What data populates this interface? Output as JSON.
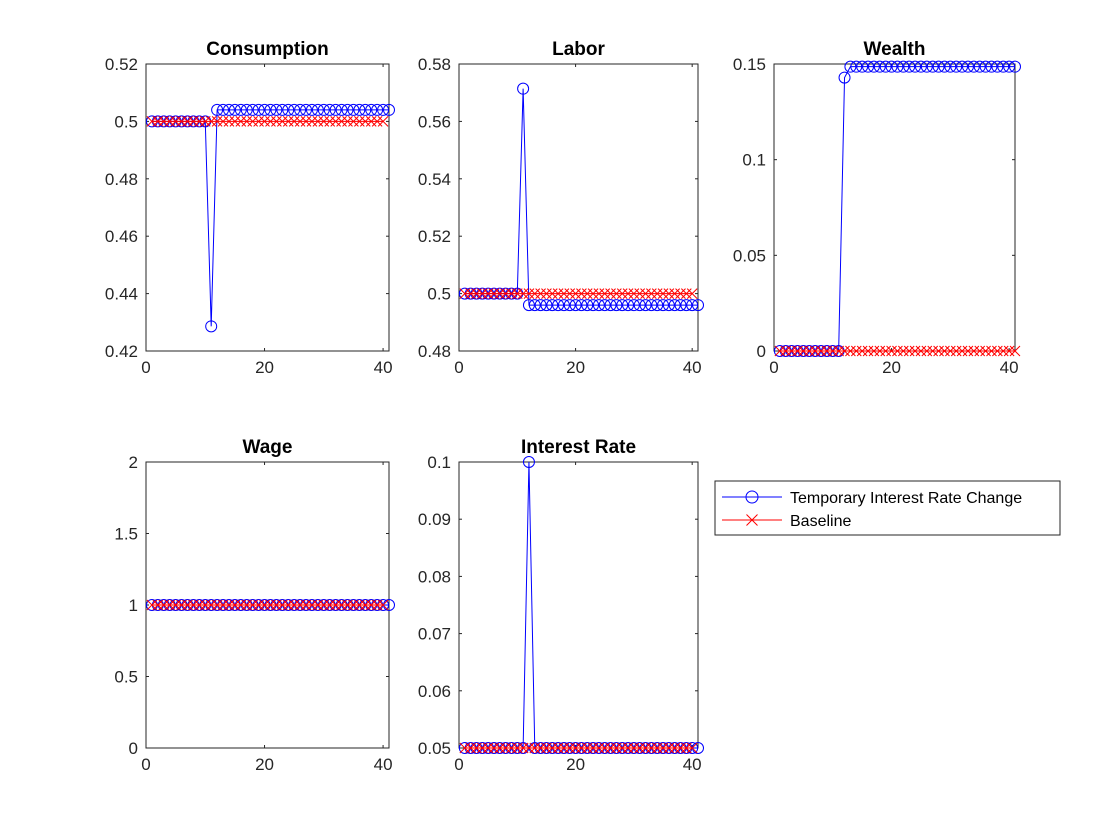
{
  "colors": {
    "series1": "#0000ff",
    "series2": "#ff0000",
    "axis": "#262626"
  },
  "legend": {
    "placement": "right of bottom row, outside plots",
    "entries": [
      {
        "label": "Temporary Interest Rate Change",
        "marker": "circle",
        "color": "#0000ff"
      },
      {
        "label": "Baseline",
        "marker": "x",
        "color": "#ff0000"
      }
    ]
  },
  "chart_data": [
    {
      "type": "line",
      "title": "Consumption",
      "xlim": [
        0,
        41
      ],
      "ylim": [
        0.42,
        0.52
      ],
      "xticks": [
        "0",
        "20",
        "40"
      ],
      "yticks": [
        "0.42",
        "0.44",
        "0.46",
        "0.48",
        "0.5",
        "0.52"
      ],
      "ytick_values": [
        0.42,
        0.44,
        0.46,
        0.48,
        0.5,
        0.52
      ],
      "series": [
        {
          "name": "Temporary Interest Rate Change",
          "marker": "circle",
          "color": "#0000ff",
          "x": [
            1,
            2,
            3,
            4,
            5,
            6,
            7,
            8,
            9,
            10,
            11,
            12,
            13,
            14,
            15,
            16,
            17,
            18,
            19,
            20,
            21,
            22,
            23,
            24,
            25,
            26,
            27,
            28,
            29,
            30,
            31,
            32,
            33,
            34,
            35,
            36,
            37,
            38,
            39,
            40,
            41
          ],
          "values": [
            0.5,
            0.5,
            0.5,
            0.5,
            0.5,
            0.5,
            0.5,
            0.5,
            0.5,
            0.5,
            0.4286,
            0.504,
            0.504,
            0.504,
            0.504,
            0.504,
            0.504,
            0.504,
            0.504,
            0.504,
            0.504,
            0.504,
            0.504,
            0.504,
            0.504,
            0.504,
            0.504,
            0.504,
            0.504,
            0.504,
            0.504,
            0.504,
            0.504,
            0.504,
            0.504,
            0.504,
            0.504,
            0.504,
            0.504,
            0.504,
            0.504
          ]
        },
        {
          "name": "Baseline",
          "marker": "x",
          "color": "#ff0000",
          "x": [
            1,
            2,
            3,
            4,
            5,
            6,
            7,
            8,
            9,
            10,
            11,
            12,
            13,
            14,
            15,
            16,
            17,
            18,
            19,
            20,
            21,
            22,
            23,
            24,
            25,
            26,
            27,
            28,
            29,
            30,
            31,
            32,
            33,
            34,
            35,
            36,
            37,
            38,
            39,
            40
          ],
          "values": [
            0.5,
            0.5,
            0.5,
            0.5,
            0.5,
            0.5,
            0.5,
            0.5,
            0.5,
            0.5,
            0.5,
            0.5,
            0.5,
            0.5,
            0.5,
            0.5,
            0.5,
            0.5,
            0.5,
            0.5,
            0.5,
            0.5,
            0.5,
            0.5,
            0.5,
            0.5,
            0.5,
            0.5,
            0.5,
            0.5,
            0.5,
            0.5,
            0.5,
            0.5,
            0.5,
            0.5,
            0.5,
            0.5,
            0.5,
            0.5
          ]
        }
      ]
    },
    {
      "type": "line",
      "title": "Labor",
      "xlim": [
        0,
        41
      ],
      "ylim": [
        0.48,
        0.58
      ],
      "xticks": [
        "0",
        "20",
        "40"
      ],
      "yticks": [
        "0.48",
        "0.5",
        "0.52",
        "0.54",
        "0.56",
        "0.58"
      ],
      "ytick_values": [
        0.48,
        0.5,
        0.52,
        0.54,
        0.56,
        0.58
      ],
      "series": [
        {
          "name": "Temporary Interest Rate Change",
          "marker": "circle",
          "color": "#0000ff",
          "x": [
            1,
            2,
            3,
            4,
            5,
            6,
            7,
            8,
            9,
            10,
            11,
            12,
            13,
            14,
            15,
            16,
            17,
            18,
            19,
            20,
            21,
            22,
            23,
            24,
            25,
            26,
            27,
            28,
            29,
            30,
            31,
            32,
            33,
            34,
            35,
            36,
            37,
            38,
            39,
            40,
            41
          ],
          "values": [
            0.5,
            0.5,
            0.5,
            0.5,
            0.5,
            0.5,
            0.5,
            0.5,
            0.5,
            0.5,
            0.5714,
            0.496,
            0.496,
            0.496,
            0.496,
            0.496,
            0.496,
            0.496,
            0.496,
            0.496,
            0.496,
            0.496,
            0.496,
            0.496,
            0.496,
            0.496,
            0.496,
            0.496,
            0.496,
            0.496,
            0.496,
            0.496,
            0.496,
            0.496,
            0.496,
            0.496,
            0.496,
            0.496,
            0.496,
            0.496,
            0.496
          ]
        },
        {
          "name": "Baseline",
          "marker": "x",
          "color": "#ff0000",
          "x": [
            1,
            2,
            3,
            4,
            5,
            6,
            7,
            8,
            9,
            10,
            11,
            12,
            13,
            14,
            15,
            16,
            17,
            18,
            19,
            20,
            21,
            22,
            23,
            24,
            25,
            26,
            27,
            28,
            29,
            30,
            31,
            32,
            33,
            34,
            35,
            36,
            37,
            38,
            39,
            40
          ],
          "values": [
            0.5,
            0.5,
            0.5,
            0.5,
            0.5,
            0.5,
            0.5,
            0.5,
            0.5,
            0.5,
            0.5,
            0.5,
            0.5,
            0.5,
            0.5,
            0.5,
            0.5,
            0.5,
            0.5,
            0.5,
            0.5,
            0.5,
            0.5,
            0.5,
            0.5,
            0.5,
            0.5,
            0.5,
            0.5,
            0.5,
            0.5,
            0.5,
            0.5,
            0.5,
            0.5,
            0.5,
            0.5,
            0.5,
            0.5,
            0.5
          ]
        }
      ]
    },
    {
      "type": "line",
      "title": "Wealth",
      "xlim": [
        0,
        41
      ],
      "ylim": [
        0,
        0.15
      ],
      "xticks": [
        "0",
        "20",
        "40"
      ],
      "yticks": [
        "0",
        "0.05",
        "0.1",
        "0.15"
      ],
      "ytick_values": [
        0,
        0.05,
        0.1,
        0.15
      ],
      "series": [
        {
          "name": "Temporary Interest Rate Change",
          "marker": "circle",
          "color": "#0000ff",
          "x": [
            1,
            2,
            3,
            4,
            5,
            6,
            7,
            8,
            9,
            10,
            11,
            12,
            13,
            14,
            15,
            16,
            17,
            18,
            19,
            20,
            21,
            22,
            23,
            24,
            25,
            26,
            27,
            28,
            29,
            30,
            31,
            32,
            33,
            34,
            35,
            36,
            37,
            38,
            39,
            40,
            41
          ],
          "values": [
            0,
            0,
            0,
            0,
            0,
            0,
            0,
            0,
            0,
            0,
            0,
            0.1429,
            0.1486,
            0.1486,
            0.1486,
            0.1486,
            0.1486,
            0.1486,
            0.1486,
            0.1486,
            0.1486,
            0.1486,
            0.1486,
            0.1486,
            0.1486,
            0.1486,
            0.1486,
            0.1486,
            0.1486,
            0.1486,
            0.1486,
            0.1486,
            0.1486,
            0.1486,
            0.1486,
            0.1486,
            0.1486,
            0.1486,
            0.1486,
            0.1486,
            0.1486
          ]
        },
        {
          "name": "Baseline",
          "marker": "x",
          "color": "#ff0000",
          "x": [
            1,
            2,
            3,
            4,
            5,
            6,
            7,
            8,
            9,
            10,
            11,
            12,
            13,
            14,
            15,
            16,
            17,
            18,
            19,
            20,
            21,
            22,
            23,
            24,
            25,
            26,
            27,
            28,
            29,
            30,
            31,
            32,
            33,
            34,
            35,
            36,
            37,
            38,
            39,
            40,
            41
          ],
          "values": [
            0,
            0,
            0,
            0,
            0,
            0,
            0,
            0,
            0,
            0,
            0,
            0,
            0,
            0,
            0,
            0,
            0,
            0,
            0,
            0,
            0,
            0,
            0,
            0,
            0,
            0,
            0,
            0,
            0,
            0,
            0,
            0,
            0,
            0,
            0,
            0,
            0,
            0,
            0,
            0,
            0
          ]
        }
      ]
    },
    {
      "type": "line",
      "title": "Wage",
      "xlim": [
        0,
        41
      ],
      "ylim": [
        0,
        2
      ],
      "xticks": [
        "0",
        "20",
        "40"
      ],
      "yticks": [
        "0",
        "0.5",
        "1",
        "1.5",
        "2"
      ],
      "ytick_values": [
        0,
        0.5,
        1,
        1.5,
        2
      ],
      "series": [
        {
          "name": "Temporary Interest Rate Change",
          "marker": "circle",
          "color": "#0000ff",
          "x": [
            1,
            2,
            3,
            4,
            5,
            6,
            7,
            8,
            9,
            10,
            11,
            12,
            13,
            14,
            15,
            16,
            17,
            18,
            19,
            20,
            21,
            22,
            23,
            24,
            25,
            26,
            27,
            28,
            29,
            30,
            31,
            32,
            33,
            34,
            35,
            36,
            37,
            38,
            39,
            40,
            41
          ],
          "values": [
            1,
            1,
            1,
            1,
            1,
            1,
            1,
            1,
            1,
            1,
            1,
            1,
            1,
            1,
            1,
            1,
            1,
            1,
            1,
            1,
            1,
            1,
            1,
            1,
            1,
            1,
            1,
            1,
            1,
            1,
            1,
            1,
            1,
            1,
            1,
            1,
            1,
            1,
            1,
            1,
            1
          ]
        },
        {
          "name": "Baseline",
          "marker": "x",
          "color": "#ff0000",
          "x": [
            1,
            2,
            3,
            4,
            5,
            6,
            7,
            8,
            9,
            10,
            11,
            12,
            13,
            14,
            15,
            16,
            17,
            18,
            19,
            20,
            21,
            22,
            23,
            24,
            25,
            26,
            27,
            28,
            29,
            30,
            31,
            32,
            33,
            34,
            35,
            36,
            37,
            38,
            39,
            40
          ],
          "values": [
            1,
            1,
            1,
            1,
            1,
            1,
            1,
            1,
            1,
            1,
            1,
            1,
            1,
            1,
            1,
            1,
            1,
            1,
            1,
            1,
            1,
            1,
            1,
            1,
            1,
            1,
            1,
            1,
            1,
            1,
            1,
            1,
            1,
            1,
            1,
            1,
            1,
            1,
            1,
            1
          ]
        }
      ]
    },
    {
      "type": "line",
      "title": "Interest Rate",
      "xlim": [
        0,
        41
      ],
      "ylim": [
        0.05,
        0.1
      ],
      "xticks": [
        "0",
        "20",
        "40"
      ],
      "yticks": [
        "0.05",
        "0.06",
        "0.07",
        "0.08",
        "0.09",
        "0.1"
      ],
      "ytick_values": [
        0.05,
        0.06,
        0.07,
        0.08,
        0.09,
        0.1
      ],
      "series": [
        {
          "name": "Temporary Interest Rate Change",
          "marker": "circle",
          "color": "#0000ff",
          "x": [
            1,
            2,
            3,
            4,
            5,
            6,
            7,
            8,
            9,
            10,
            11,
            12,
            13,
            14,
            15,
            16,
            17,
            18,
            19,
            20,
            21,
            22,
            23,
            24,
            25,
            26,
            27,
            28,
            29,
            30,
            31,
            32,
            33,
            34,
            35,
            36,
            37,
            38,
            39,
            40,
            41
          ],
          "values": [
            0.05,
            0.05,
            0.05,
            0.05,
            0.05,
            0.05,
            0.05,
            0.05,
            0.05,
            0.05,
            0.05,
            0.1,
            0.05,
            0.05,
            0.05,
            0.05,
            0.05,
            0.05,
            0.05,
            0.05,
            0.05,
            0.05,
            0.05,
            0.05,
            0.05,
            0.05,
            0.05,
            0.05,
            0.05,
            0.05,
            0.05,
            0.05,
            0.05,
            0.05,
            0.05,
            0.05,
            0.05,
            0.05,
            0.05,
            0.05,
            0.05
          ]
        },
        {
          "name": "Baseline",
          "marker": "x",
          "color": "#ff0000",
          "x": [
            1,
            2,
            3,
            4,
            5,
            6,
            7,
            8,
            9,
            10,
            11,
            12,
            13,
            14,
            15,
            16,
            17,
            18,
            19,
            20,
            21,
            22,
            23,
            24,
            25,
            26,
            27,
            28,
            29,
            30,
            31,
            32,
            33,
            34,
            35,
            36,
            37,
            38,
            39,
            40
          ],
          "values": [
            0.05,
            0.05,
            0.05,
            0.05,
            0.05,
            0.05,
            0.05,
            0.05,
            0.05,
            0.05,
            0.05,
            0.05,
            0.05,
            0.05,
            0.05,
            0.05,
            0.05,
            0.05,
            0.05,
            0.05,
            0.05,
            0.05,
            0.05,
            0.05,
            0.05,
            0.05,
            0.05,
            0.05,
            0.05,
            0.05,
            0.05,
            0.05,
            0.05,
            0.05,
            0.05,
            0.05,
            0.05,
            0.05,
            0.05,
            0.05
          ]
        }
      ]
    }
  ]
}
